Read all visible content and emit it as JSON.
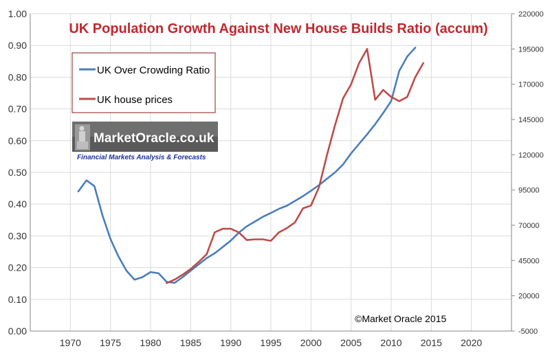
{
  "chart_data": {
    "type": "line",
    "title": "UK  Population Growth Against New House Builds Ratio (accum)",
    "xlim": [
      1965,
      2025
    ],
    "x_ticks": [
      "1970",
      "1975",
      "1980",
      "1985",
      "1990",
      "1995",
      "2000",
      "2005",
      "2010",
      "2015",
      "2020"
    ],
    "ylim_left": [
      0,
      1.0
    ],
    "y_ticks_left": [
      "0.00",
      "0.10",
      "0.20",
      "0.30",
      "0.40",
      "0.50",
      "0.60",
      "0.70",
      "0.80",
      "0.90",
      "1.00"
    ],
    "ylim_right": [
      -5000,
      220000
    ],
    "y_ticks_right": [
      "-5000",
      "20000",
      "45000",
      "70000",
      "95000",
      "120000",
      "145000",
      "170000",
      "195000",
      "220000"
    ],
    "grid": true,
    "legend_position": "top-left",
    "series": [
      {
        "name": "UK Over Crowding Ratio",
        "axis": "left",
        "color": "#4a7ebb",
        "x": [
          1971,
          1972,
          1973,
          1974,
          1975,
          1976,
          1977,
          1978,
          1979,
          1980,
          1981,
          1982,
          1983,
          1984,
          1985,
          1986,
          1987,
          1988,
          1989,
          1990,
          1991,
          1992,
          1993,
          1994,
          1995,
          1996,
          1997,
          1998,
          1999,
          2000,
          2001,
          2002,
          2003,
          2004,
          2005,
          2006,
          2007,
          2008,
          2009,
          2010,
          2011,
          2012,
          2013
        ],
        "y": [
          0.44,
          0.475,
          0.457,
          0.365,
          0.29,
          0.235,
          0.19,
          0.162,
          0.17,
          0.186,
          0.182,
          0.155,
          0.152,
          0.17,
          0.19,
          0.21,
          0.23,
          0.245,
          0.265,
          0.285,
          0.31,
          0.33,
          0.345,
          0.36,
          0.372,
          0.385,
          0.395,
          0.41,
          0.425,
          0.442,
          0.46,
          0.48,
          0.5,
          0.525,
          0.56,
          0.59,
          0.62,
          0.652,
          0.687,
          0.725,
          0.82,
          0.865,
          0.893
        ]
      },
      {
        "name": "UK house prices",
        "axis": "right",
        "color": "#be4b48",
        "x": [
          1982,
          1983,
          1984,
          1985,
          1986,
          1987,
          1988,
          1989,
          1990,
          1991,
          1992,
          1993,
          1994,
          1995,
          1996,
          1997,
          1998,
          1999,
          2000,
          2001,
          2002,
          2003,
          2004,
          2005,
          2006,
          2007,
          2008,
          2009,
          2010,
          2011,
          2012,
          2013,
          2014
        ],
        "y": [
          29000,
          31500,
          35000,
          39000,
          44000,
          49500,
          65000,
          67500,
          67500,
          65000,
          59500,
          60000,
          60000,
          59000,
          65000,
          68000,
          72000,
          82000,
          84000,
          97000,
          120000,
          141000,
          160000,
          170000,
          185000,
          195000,
          159000,
          166000,
          161000,
          158000,
          161000,
          175000,
          185000
        ]
      }
    ],
    "annotations": [
      "©Market Oracle 2015"
    ],
    "logo": {
      "name": "MarketOracle.co.uk",
      "tagline": "Financial Markets Analysis & Forecasts"
    }
  }
}
